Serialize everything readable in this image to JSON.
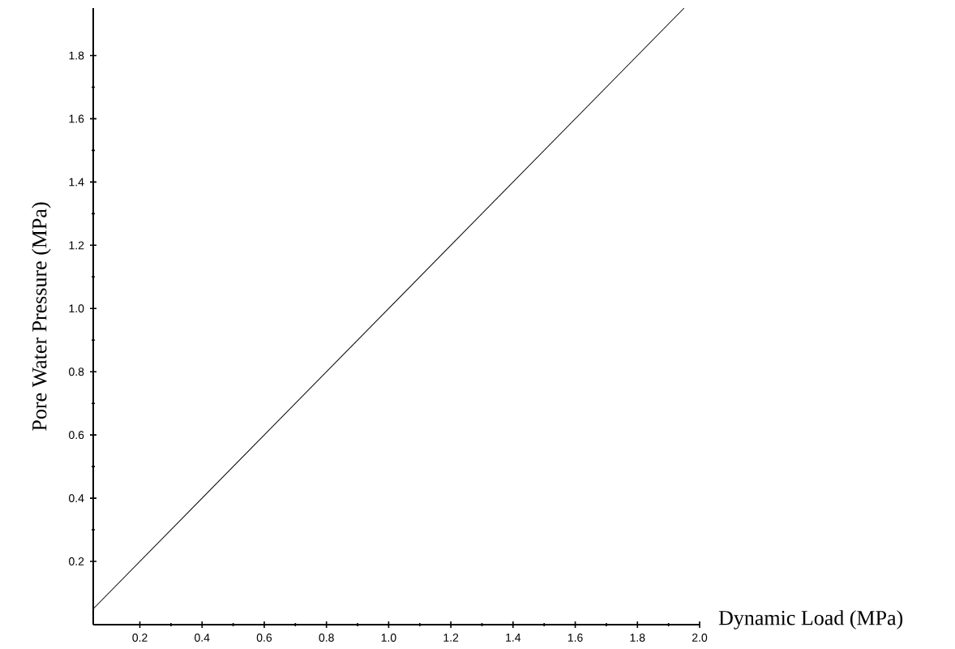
{
  "chart_data": {
    "type": "line",
    "xlabel": "Dynamic Load (MPa)",
    "ylabel": "Pore Water Pressure (MPa)",
    "x": [
      0.05,
      1.95
    ],
    "values": [
      0.05,
      1.95
    ],
    "color": "#000000",
    "xlim": [
      0.05,
      2.0
    ],
    "ylim": [
      0.0,
      1.95
    ],
    "xticks": [
      0.2,
      0.4,
      0.6,
      0.8,
      {
        "value": 1.0,
        "label": "1.0"
      },
      1.2,
      1.4,
      1.6,
      1.8,
      {
        "value": 2.0,
        "label": "2.0"
      }
    ],
    "yticks": [
      0.2,
      0.4,
      0.6,
      0.8,
      {
        "value": 1.0,
        "label": "1.0"
      },
      1.2,
      1.4,
      1.6,
      1.8
    ],
    "grid": false,
    "marker": "none",
    "line_style": "solid"
  }
}
